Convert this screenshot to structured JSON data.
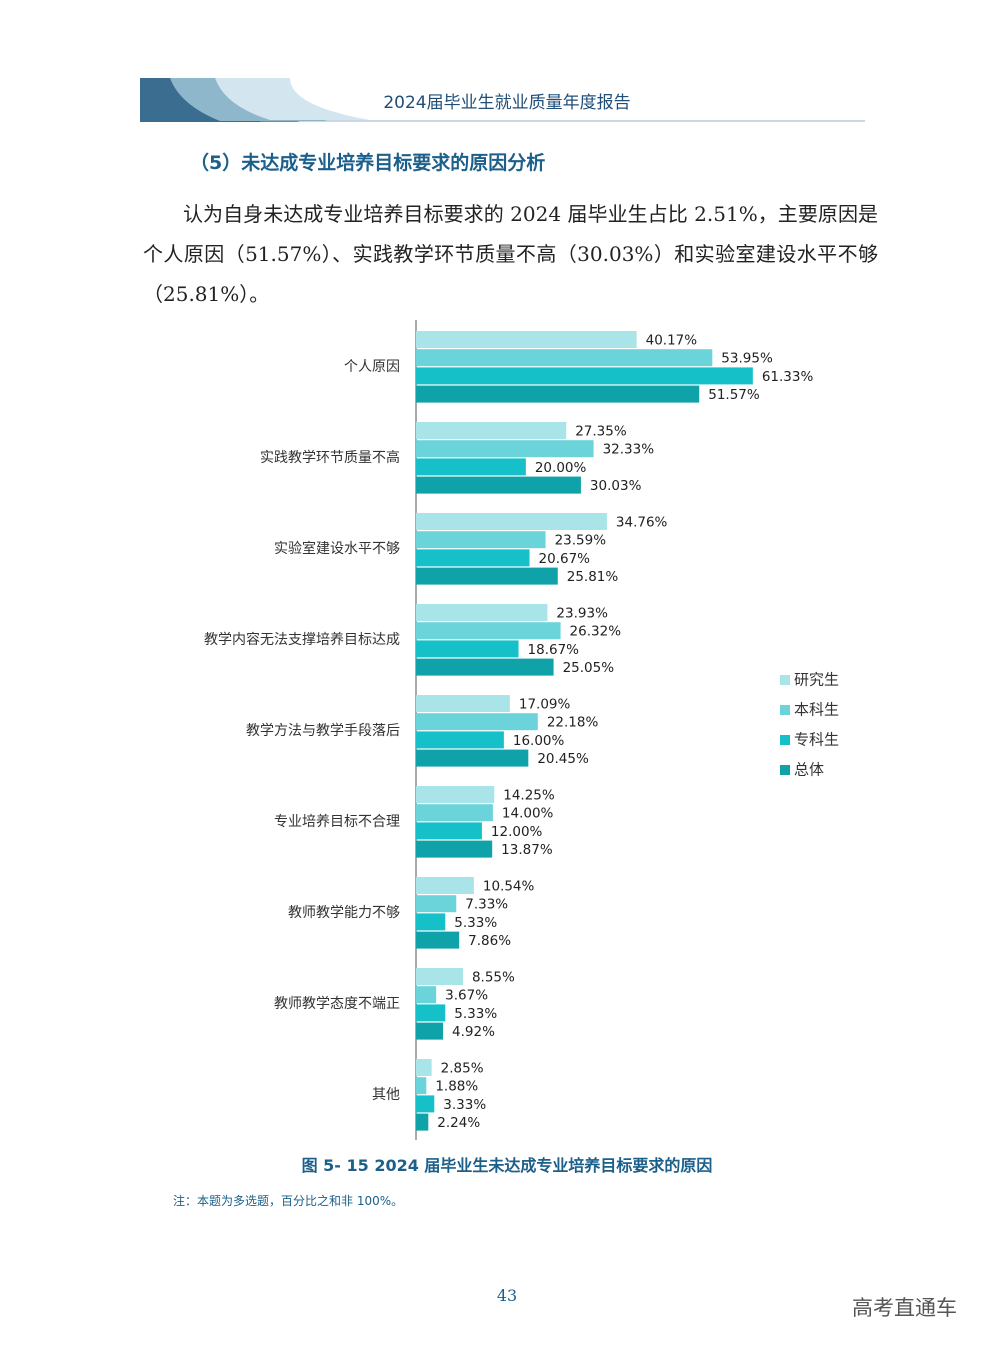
{
  "header": {
    "title": "2024届毕业生就业质量年度报告"
  },
  "section": {
    "heading": "（5）未达成专业培养目标要求的原因分析",
    "paragraph": "认为自身未达成专业培养目标要求的 2024 届毕业生占比 2.51%，主要原因是个人原因（51.57%）、实践教学环节质量不高（30.03%）和实验室建设水平不够（25.81%）。"
  },
  "chart_data": {
    "type": "bar",
    "orientation": "horizontal",
    "xlim": [
      0,
      65
    ],
    "categories": [
      "个人原因",
      "实践教学环节质量不高",
      "实验室建设水平不够",
      "教学内容无法支撑培养目标达成",
      "教学方法与教学手段落后",
      "专业培养目标不合理",
      "教师教学能力不够",
      "教师教学态度不端正",
      "其他"
    ],
    "series": [
      {
        "name": "研究生",
        "color": "#a9e4e8",
        "values": [
          40.17,
          27.35,
          34.76,
          23.93,
          17.09,
          14.25,
          10.54,
          8.55,
          2.85
        ],
        "value_labels": [
          "40.17%",
          "27.35%",
          "34.76%",
          "23.93%",
          "17.09%",
          "14.25%",
          "10.54%",
          "8.55%",
          "2.85%"
        ]
      },
      {
        "name": "本科生",
        "color": "#6bd4db",
        "values": [
          53.95,
          32.33,
          23.59,
          26.32,
          22.18,
          14.0,
          7.33,
          3.67,
          1.88
        ],
        "value_labels": [
          "53.95%",
          "32.33%",
          "23.59%",
          "26.32%",
          "22.18%",
          "14.00%",
          "7.33%",
          "3.67%",
          "1.88%"
        ]
      },
      {
        "name": "专科生",
        "color": "#16c0c9",
        "values": [
          61.33,
          20.0,
          20.67,
          18.67,
          16.0,
          12.0,
          5.33,
          5.33,
          3.33
        ],
        "value_labels": [
          "61.33%",
          "20.00%",
          "20.67%",
          "18.67%",
          "16.00%",
          "12.00%",
          "5.33%",
          "5.33%",
          "3.33%"
        ]
      },
      {
        "name": "总体",
        "color": "#0fa2a8",
        "values": [
          51.57,
          30.03,
          25.81,
          25.05,
          20.45,
          13.87,
          7.86,
          4.92,
          2.24
        ],
        "value_labels": [
          "51.57%",
          "30.03%",
          "25.81%",
          "25.05%",
          "20.45%",
          "13.87%",
          "7.86%",
          "4.92%",
          "2.24%"
        ]
      }
    ],
    "caption": "图 5- 15  2024 届毕业生未达成专业培养目标要求的原因",
    "note": "注：本题为多选题，百分比之和非 100%。"
  },
  "footer": {
    "page_number": "43",
    "watermark": "高考直通车"
  }
}
